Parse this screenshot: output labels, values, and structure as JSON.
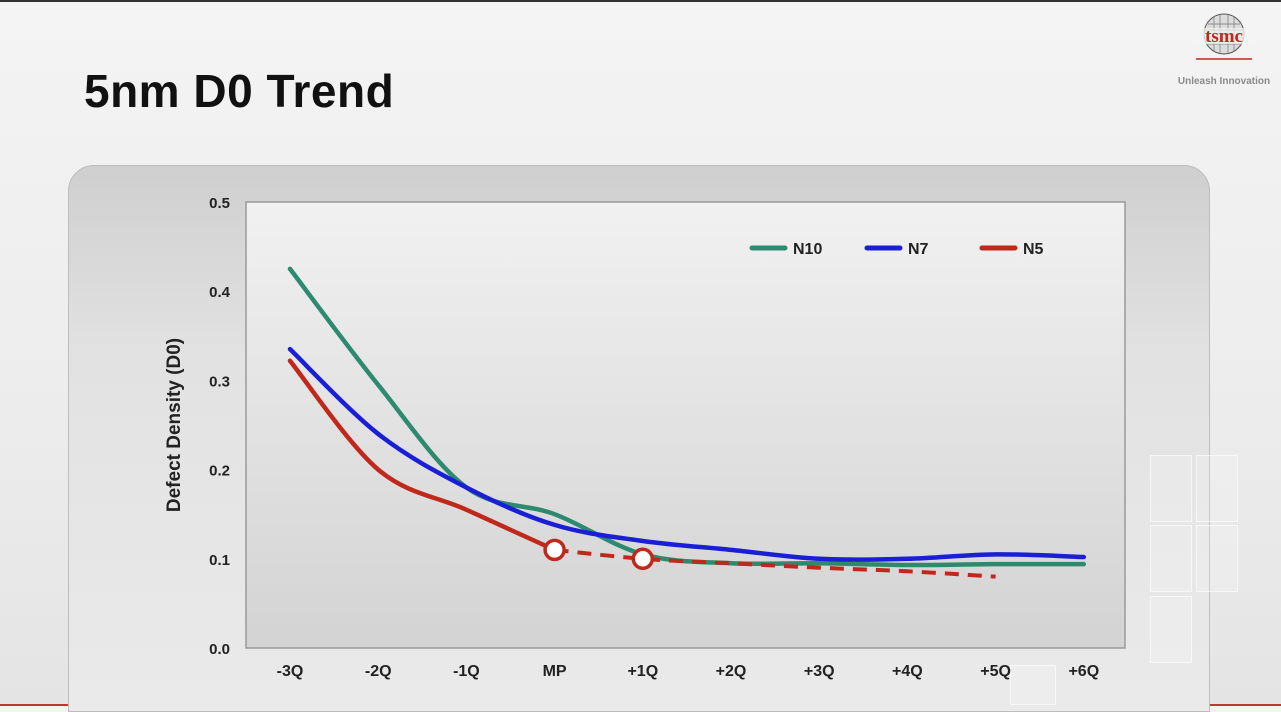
{
  "slide": {
    "title": "5nm D0 Trend",
    "logo": {
      "name": "tsmc",
      "tagline": "Unleash Innovation"
    }
  },
  "colors": {
    "N10": "#2e8a6e",
    "N7": "#1a1fd6",
    "N5": "#c0281c",
    "plot_bg_top": "#f1f1f1",
    "plot_bg_bottom": "#d3d3d3"
  },
  "chart_data": {
    "type": "line",
    "title": "",
    "xlabel": "",
    "ylabel": "Defect Density (D0)",
    "categories": [
      "-3Q",
      "-2Q",
      "-1Q",
      "MP",
      "+1Q",
      "+2Q",
      "+3Q",
      "+4Q",
      "+5Q",
      "+6Q"
    ],
    "ylim": [
      0,
      0.5
    ],
    "yticks": [
      "0.0",
      "0.1",
      "0.2",
      "0.3",
      "0.4",
      "0.5"
    ],
    "grid": false,
    "legend_position": "top-right",
    "series": [
      {
        "name": "N10",
        "values": [
          0.425,
          0.295,
          0.18,
          0.15,
          0.105,
          0.095,
          0.095,
          0.093,
          0.094,
          0.094
        ]
      },
      {
        "name": "N7",
        "values": [
          0.335,
          0.24,
          0.18,
          0.138,
          0.12,
          0.11,
          0.1,
          0.1,
          0.105,
          0.102
        ]
      },
      {
        "name": "N5",
        "values": [
          0.322,
          0.2,
          0.155,
          0.11,
          0.1,
          0.095,
          0.09,
          0.086,
          0.08,
          null
        ],
        "solid_until": 3,
        "dashed_from": 3,
        "markers": [
          3,
          4
        ]
      }
    ]
  }
}
